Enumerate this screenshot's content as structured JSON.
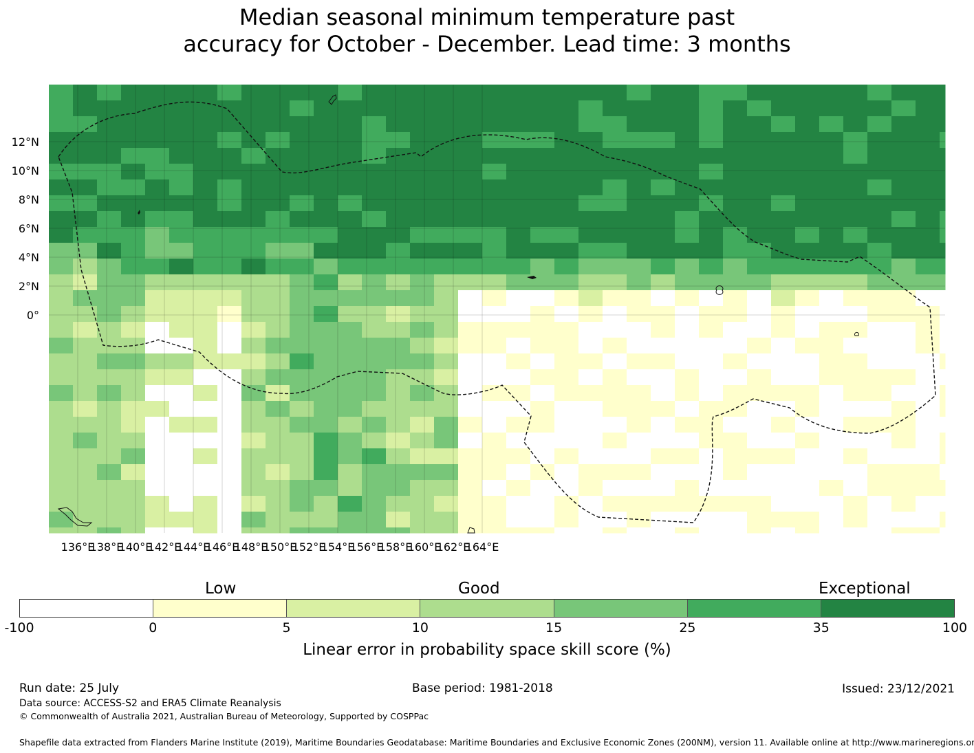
{
  "title": {
    "line1": "Median seasonal minimum temperature past",
    "line2": "accuracy for October - December. Lead time: 3 months"
  },
  "map": {
    "lat_labels": [
      "12°N",
      "10°N",
      "8°N",
      "6°N",
      "4°N",
      "2°N",
      "0°"
    ],
    "lon_labels": [
      "136°E",
      "138°E",
      "140°E",
      "142°E",
      "144°E",
      "146°E",
      "148°E",
      "150°E",
      "152°E",
      "154°E",
      "156°E",
      "158°E",
      "160°E",
      "162°E",
      "164°E"
    ],
    "extent": {
      "lon": [
        135,
        166
      ],
      "lat": [
        -1.5,
        14
      ]
    },
    "grid_cells_deg": 0.83,
    "boundary": "Federated States of Micronesia EEZ (dashed)"
  },
  "legend": {
    "categories": [
      "Low",
      "Good",
      "Exceptional"
    ],
    "ticks": [
      "-100",
      "0",
      "5",
      "10",
      "15",
      "25",
      "35",
      "100"
    ],
    "colors": [
      "#ffffff",
      "#ffffcc",
      "#d9f0a3",
      "#addd8e",
      "#78c679",
      "#41ab5d",
      "#238443"
    ],
    "label": "Linear error in probability space skill score (%)"
  },
  "footer": {
    "run_date": "Run date: 25 July",
    "base_period": "Base period: 1981-2018",
    "issued": "Issued: 23/12/2021",
    "data_source": "Data source: ACCESS-S2 and ERA5 Climate Reanalysis",
    "copyright": "© Commonwealth of Australia 2021, Australian Bureau of Meteorology, Supported by COSPPac",
    "shapefile": "Shapefile data extracted from Flanders Marine Institute (2019), Maritime Boundaries Geodatabase: Maritime Boundaries and Exclusive Economic Zones (200NM), version 11. Available online at http://www.marineregions.org/."
  }
}
